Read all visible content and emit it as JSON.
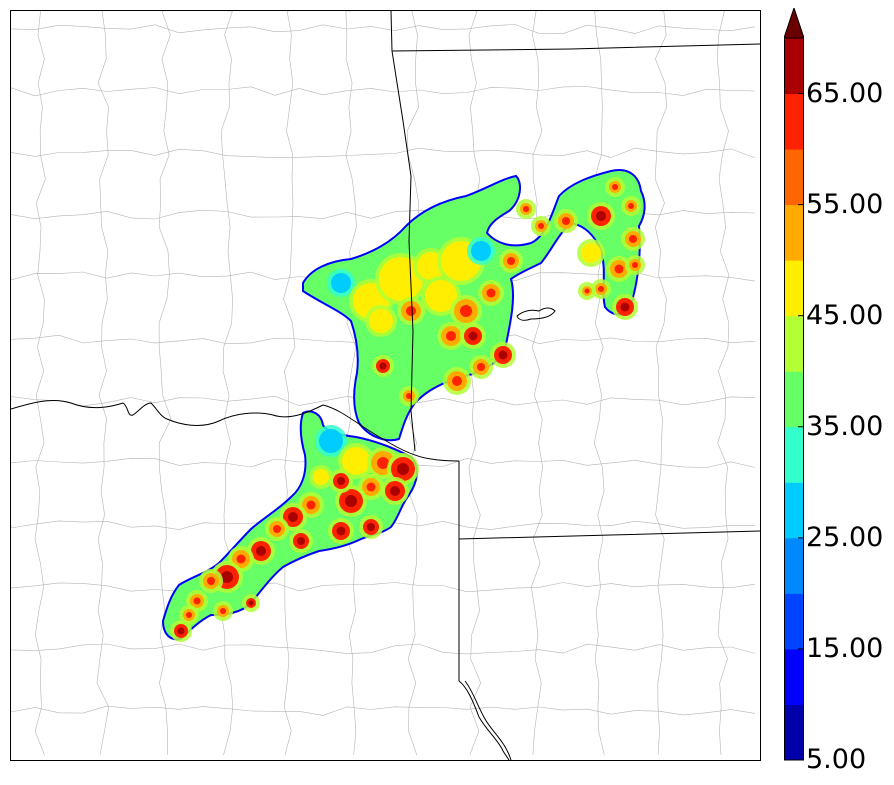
{
  "colorbar": {
    "labels": [
      "5.00",
      "15.00",
      "25.00",
      "35.00",
      "45.00",
      "55.00",
      "65.00"
    ],
    "label_values": [
      5,
      15,
      25,
      35,
      45,
      55,
      65
    ],
    "levels": [
      5,
      10,
      15,
      20,
      25,
      30,
      35,
      40,
      45,
      50,
      55,
      60,
      65,
      70
    ],
    "colors": [
      "#0000aa",
      "#0000ff",
      "#0044ff",
      "#0088ff",
      "#00ccff",
      "#33ffcc",
      "#66ff66",
      "#b2ff33",
      "#ffee00",
      "#ffaa00",
      "#ff6600",
      "#ff2200",
      "#aa0000"
    ],
    "extend_color": "#6b0000",
    "extend": "max"
  },
  "map": {
    "field_colors": {
      "outline": "#0000ff",
      "low": "#00ccff",
      "mid_low": "#33ffcc",
      "mid": "#66ff66",
      "mid_high": "#b2ff33",
      "high": "#ffee00",
      "higher": "#ffaa00",
      "very_high": "#ff2200",
      "extreme": "#aa0000"
    },
    "border_color": "#000000",
    "county_color": "#b4b4b4"
  }
}
